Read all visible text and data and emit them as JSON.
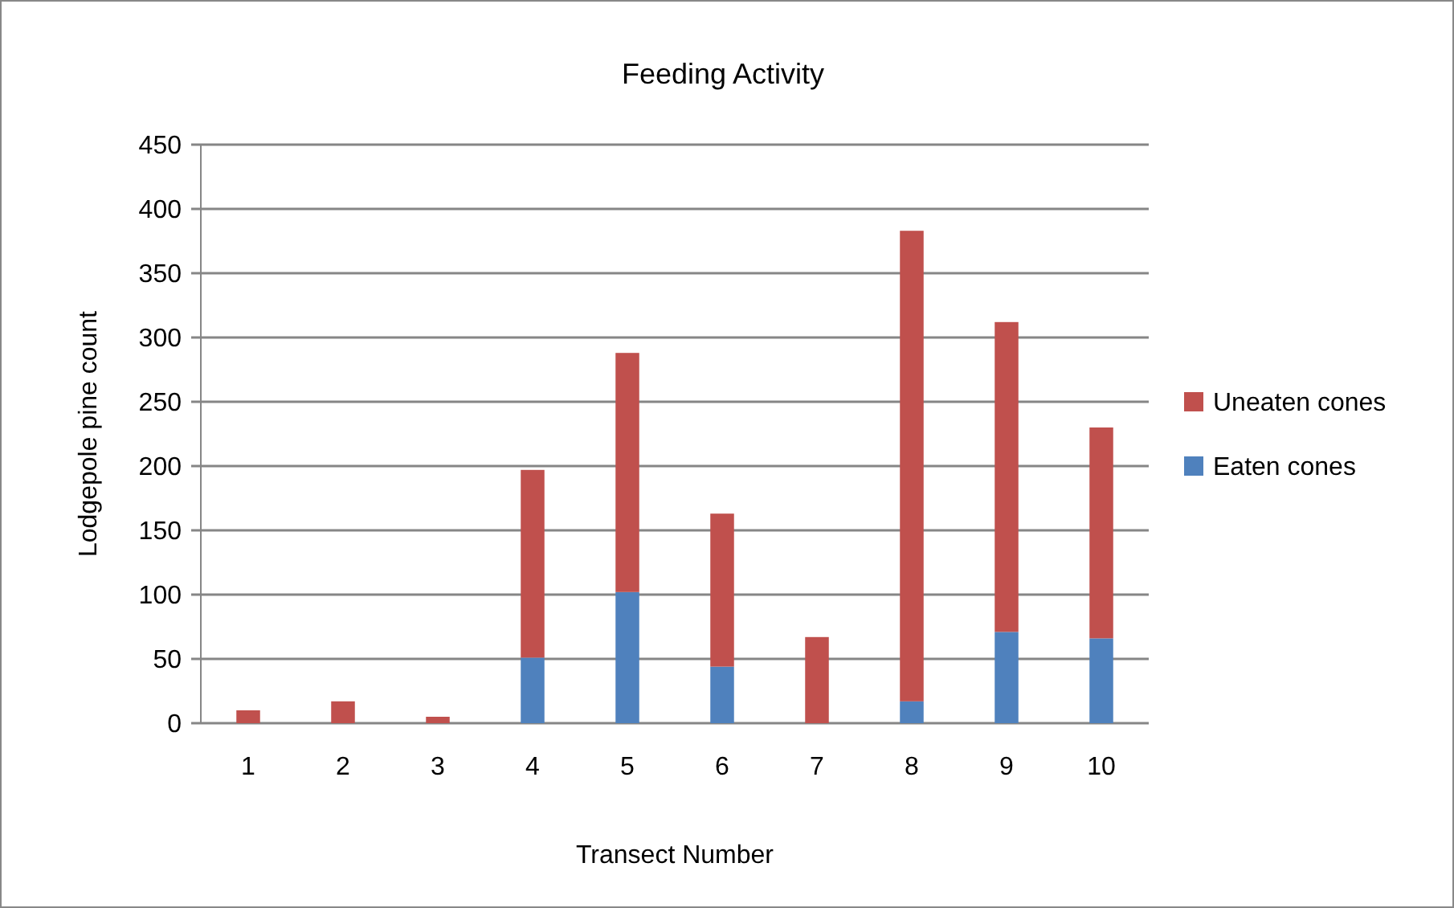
{
  "chart_data": {
    "type": "bar",
    "title": "Feeding Activity",
    "xlabel": "Transect Number",
    "ylabel": "Lodgepole pine count",
    "categories": [
      "1",
      "2",
      "3",
      "4",
      "5",
      "6",
      "7",
      "8",
      "9",
      "10"
    ],
    "series": [
      {
        "name": "Eaten cones",
        "color": "#4f81bd",
        "values": [
          0,
          0,
          0,
          51,
          102,
          44,
          0,
          17,
          71,
          66
        ]
      },
      {
        "name": "Uneaten cones",
        "color": "#c0504d",
        "values": [
          10,
          17,
          5,
          146,
          186,
          119,
          67,
          366,
          241,
          164
        ]
      }
    ],
    "stacked": true,
    "ylim": [
      0,
      450
    ],
    "yticks": [
      0,
      50,
      100,
      150,
      200,
      250,
      300,
      350,
      400,
      450
    ],
    "grid": "y",
    "legend": "right"
  }
}
